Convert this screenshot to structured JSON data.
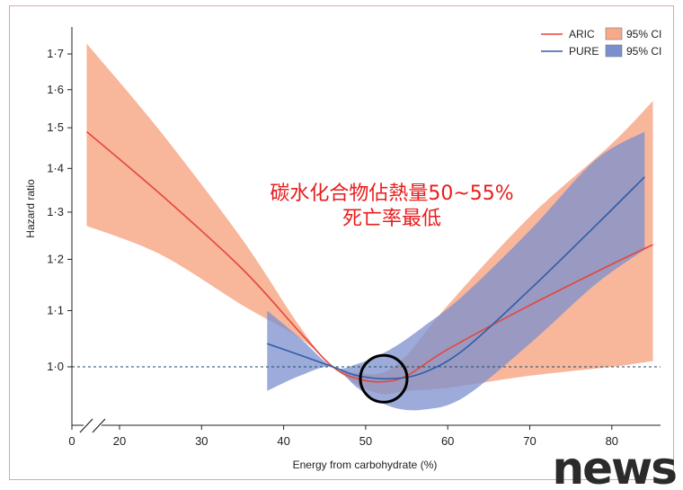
{
  "chart_data": {
    "type": "line",
    "xlabel": "Energy from carbohydrate (%)",
    "ylabel": "Hazard ratio",
    "xlim": [
      0,
      86
    ],
    "ylim": [
      0.85,
      1.75
    ],
    "y_log_scale": true,
    "x_axis_break": true,
    "xticks": [
      "0",
      "20",
      "30",
      "40",
      "50",
      "60",
      "70",
      "80"
    ],
    "xtick_values": [
      0,
      20,
      30,
      40,
      50,
      60,
      70,
      80
    ],
    "yticks": [
      "1·0",
      "1·1",
      "1·2",
      "1·3",
      "1·4",
      "1·5",
      "1·6",
      "1·7"
    ],
    "ytick_values": [
      1.0,
      1.1,
      1.2,
      1.3,
      1.4,
      1.5,
      1.6,
      1.7
    ],
    "reference_line": {
      "y": 1.0,
      "style": "dashed"
    },
    "legend": {
      "position": "top-right",
      "entries": [
        {
          "label": "ARIC",
          "ci_label": "95% CI"
        },
        {
          "label": "PURE",
          "ci_label": "95% CI"
        }
      ]
    },
    "series": [
      {
        "name": "ARIC",
        "color": "#e4473b",
        "ci_color": "#f7a98a",
        "x": [
          16,
          25,
          35,
          42,
          46,
          49,
          52,
          55,
          60,
          70,
          80,
          85
        ],
        "y": [
          1.49,
          1.34,
          1.18,
          1.06,
          1.0,
          0.98,
          0.975,
          0.985,
          1.03,
          1.11,
          1.19,
          1.23
        ],
        "ci_upper": [
          1.73,
          1.49,
          1.24,
          1.07,
          1.0,
          0.99,
          0.99,
          1.02,
          1.11,
          1.29,
          1.46,
          1.57
        ],
        "ci_lower": [
          1.27,
          1.21,
          1.11,
          1.05,
          1.0,
          0.97,
          0.955,
          0.96,
          0.965,
          0.985,
          1.0,
          1.01
        ]
      },
      {
        "name": "PURE",
        "color": "#2f5ea8",
        "ci_color": "#7b8fce",
        "x": [
          38,
          42,
          46,
          49,
          53,
          57,
          62,
          70,
          78,
          84
        ],
        "y": [
          1.04,
          1.02,
          1.0,
          0.985,
          0.98,
          0.99,
          1.03,
          1.14,
          1.27,
          1.38
        ],
        "ci_upper": [
          1.1,
          1.05,
          1.0,
          1.005,
          1.03,
          1.07,
          1.13,
          1.26,
          1.42,
          1.49
        ],
        "ci_lower": [
          0.96,
          0.985,
          1.0,
          0.965,
          0.935,
          0.93,
          0.95,
          1.04,
          1.15,
          1.22
        ]
      }
    ],
    "annotation": {
      "lines": [
        "碳水化合物佔熱量50~55%",
        "死亡率最低"
      ],
      "color": "#e81c1c"
    },
    "highlight": {
      "shape": "circle",
      "x": 52.2,
      "y": 0.98
    },
    "watermark": "news"
  }
}
